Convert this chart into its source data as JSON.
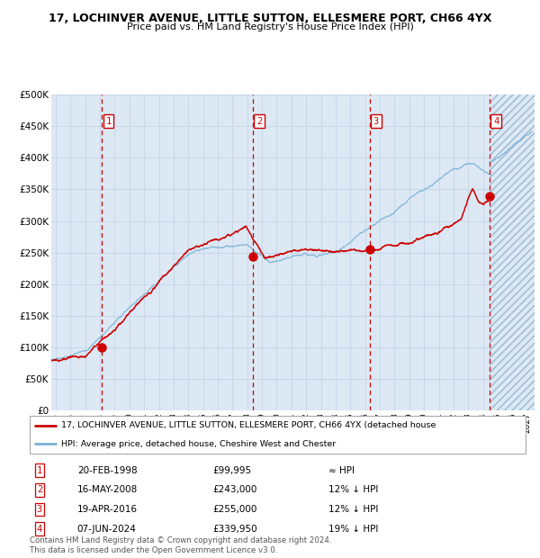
{
  "title": "17, LOCHINVER AVENUE, LITTLE SUTTON, ELLESMERE PORT, CH66 4YX",
  "subtitle": "Price paid vs. HM Land Registry's House Price Index (HPI)",
  "ylim": [
    0,
    500000
  ],
  "yticks": [
    0,
    50000,
    100000,
    150000,
    200000,
    250000,
    300000,
    350000,
    400000,
    450000,
    500000
  ],
  "ytick_labels": [
    "£0",
    "£50K",
    "£100K",
    "£150K",
    "£200K",
    "£250K",
    "£300K",
    "£350K",
    "£400K",
    "£450K",
    "£500K"
  ],
  "xlim_start": 1994.7,
  "xlim_end": 2027.5,
  "xticks": [
    1995,
    1996,
    1997,
    1998,
    1999,
    2000,
    2001,
    2002,
    2003,
    2004,
    2005,
    2006,
    2007,
    2008,
    2009,
    2010,
    2011,
    2012,
    2013,
    2014,
    2015,
    2016,
    2017,
    2018,
    2019,
    2020,
    2021,
    2022,
    2023,
    2024,
    2025,
    2026,
    2027
  ],
  "hpi_color": "#7ab0d4",
  "price_color": "#cc0000",
  "sale_marker_color": "#cc0000",
  "vline_color": "#cc0000",
  "grid_color": "#c8d8e8",
  "bg_color": "#dce8f4",
  "hatch_color": "#b8cfe0",
  "sales": [
    {
      "num": 1,
      "date": "20-FEB-1998",
      "year": 1998.13,
      "price": 99995,
      "label": "£99,995",
      "note": "≈ HPI"
    },
    {
      "num": 2,
      "date": "16-MAY-2008",
      "year": 2008.38,
      "price": 243000,
      "label": "£243,000",
      "note": "12% ↓ HPI"
    },
    {
      "num": 3,
      "date": "19-APR-2016",
      "year": 2016.3,
      "price": 255000,
      "label": "£255,000",
      "note": "12% ↓ HPI"
    },
    {
      "num": 4,
      "date": "07-JUN-2024",
      "year": 2024.44,
      "price": 339950,
      "label": "£339,950",
      "note": "19% ↓ HPI"
    }
  ],
  "legend_line1": "17, LOCHINVER AVENUE, LITTLE SUTTON, ELLESMERE PORT, CH66 4YX (detached house",
  "legend_line2": "HPI: Average price, detached house, Cheshire West and Chester",
  "footer1": "Contains HM Land Registry data © Crown copyright and database right 2024.",
  "footer2": "This data is licensed under the Open Government Licence v3.0.",
  "future_hatch_start": 2024.44
}
